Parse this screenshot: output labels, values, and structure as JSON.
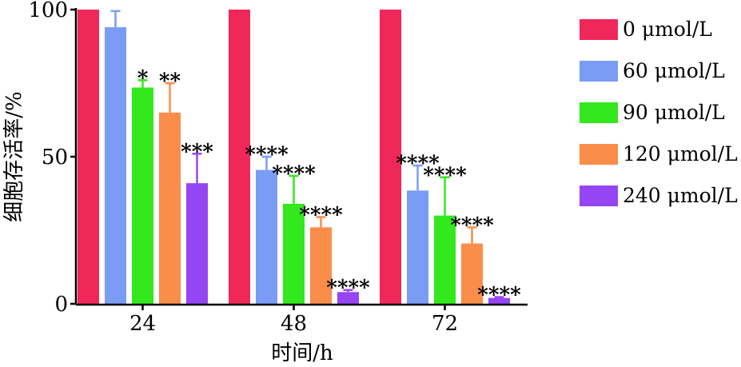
{
  "chart_data": {
    "type": "bar",
    "title": "",
    "xlabel": "时间/h",
    "ylabel": "细胞存活率/%",
    "categories": [
      "24",
      "48",
      "72"
    ],
    "ylim": [
      0,
      100
    ],
    "yticks": [
      "0",
      "50",
      "100"
    ],
    "legend_position": "right",
    "series": [
      {
        "name": "0 μmol/L",
        "color": "#f0285a",
        "values": [
          100,
          100,
          100
        ],
        "errors": [
          0,
          0,
          0
        ],
        "significance": [
          "",
          "",
          ""
        ]
      },
      {
        "name": "60 μmol/L",
        "color": "#7b9cf5",
        "values": [
          94,
          45.5,
          38.5
        ],
        "errors": [
          5.5,
          4.5,
          8.5
        ],
        "significance": [
          "",
          "****",
          "****"
        ]
      },
      {
        "name": "90 μmol/L",
        "color": "#33e81c",
        "values": [
          73.5,
          34,
          30
        ],
        "errors": [
          2.5,
          9.5,
          13
        ],
        "significance": [
          "*",
          "****",
          "****"
        ]
      },
      {
        "name": "120 μmol/L",
        "color": "#fa8d4a",
        "values": [
          65,
          26,
          20.5
        ],
        "errors": [
          10,
          3.5,
          5.5
        ],
        "significance": [
          "**",
          "****",
          "****"
        ]
      },
      {
        "name": "240 μmol/L",
        "color": "#9546f2",
        "values": [
          41,
          4,
          2
        ],
        "errors": [
          10,
          0.7,
          0.3
        ],
        "significance": [
          "***",
          "****",
          "****"
        ]
      }
    ]
  }
}
